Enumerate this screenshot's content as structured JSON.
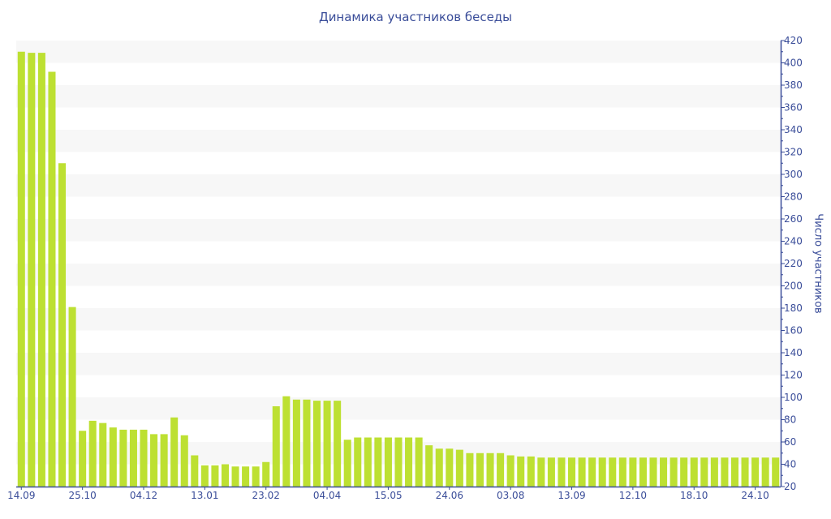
{
  "chart_data": {
    "type": "bar",
    "title": "Динамика участников беседы",
    "ylabel": "Число участников",
    "xlabel": "",
    "ylim": [
      20,
      420
    ],
    "y_ticks": [
      20,
      40,
      60,
      80,
      100,
      120,
      140,
      160,
      180,
      200,
      220,
      240,
      260,
      280,
      300,
      320,
      340,
      360,
      380,
      400,
      420
    ],
    "y_axis_position": "right",
    "grid": "alternating horizontal bands",
    "bar_color": "#bde032",
    "axis_color": "#3a4d99",
    "x_tick_labels": [
      {
        "index": 0,
        "label": "14.09"
      },
      {
        "index": 6,
        "label": "25.10"
      },
      {
        "index": 12,
        "label": "04.12"
      },
      {
        "index": 18,
        "label": "13.01"
      },
      {
        "index": 24,
        "label": "23.02"
      },
      {
        "index": 30,
        "label": "04.04"
      },
      {
        "index": 36,
        "label": "15.05"
      },
      {
        "index": 42,
        "label": "24.06"
      },
      {
        "index": 48,
        "label": "03.08"
      },
      {
        "index": 54,
        "label": "13.09"
      },
      {
        "index": 60,
        "label": "12.10"
      },
      {
        "index": 66,
        "label": "18.10"
      },
      {
        "index": 72,
        "label": "24.10"
      }
    ],
    "values": [
      410,
      409,
      409,
      392,
      310,
      181,
      70,
      79,
      77,
      73,
      71,
      71,
      71,
      67,
      67,
      82,
      66,
      48,
      39,
      39,
      40,
      38,
      38,
      38,
      42,
      92,
      101,
      98,
      98,
      97,
      97,
      97,
      62,
      64,
      64,
      64,
      64,
      64,
      64,
      64,
      57,
      54,
      54,
      53,
      50,
      50,
      50,
      50,
      48,
      47,
      47,
      46,
      46,
      46,
      46,
      46,
      46,
      46,
      46,
      46,
      46,
      46,
      46,
      46,
      46,
      46,
      46,
      46,
      46,
      46,
      46,
      46,
      46,
      46,
      46
    ]
  }
}
